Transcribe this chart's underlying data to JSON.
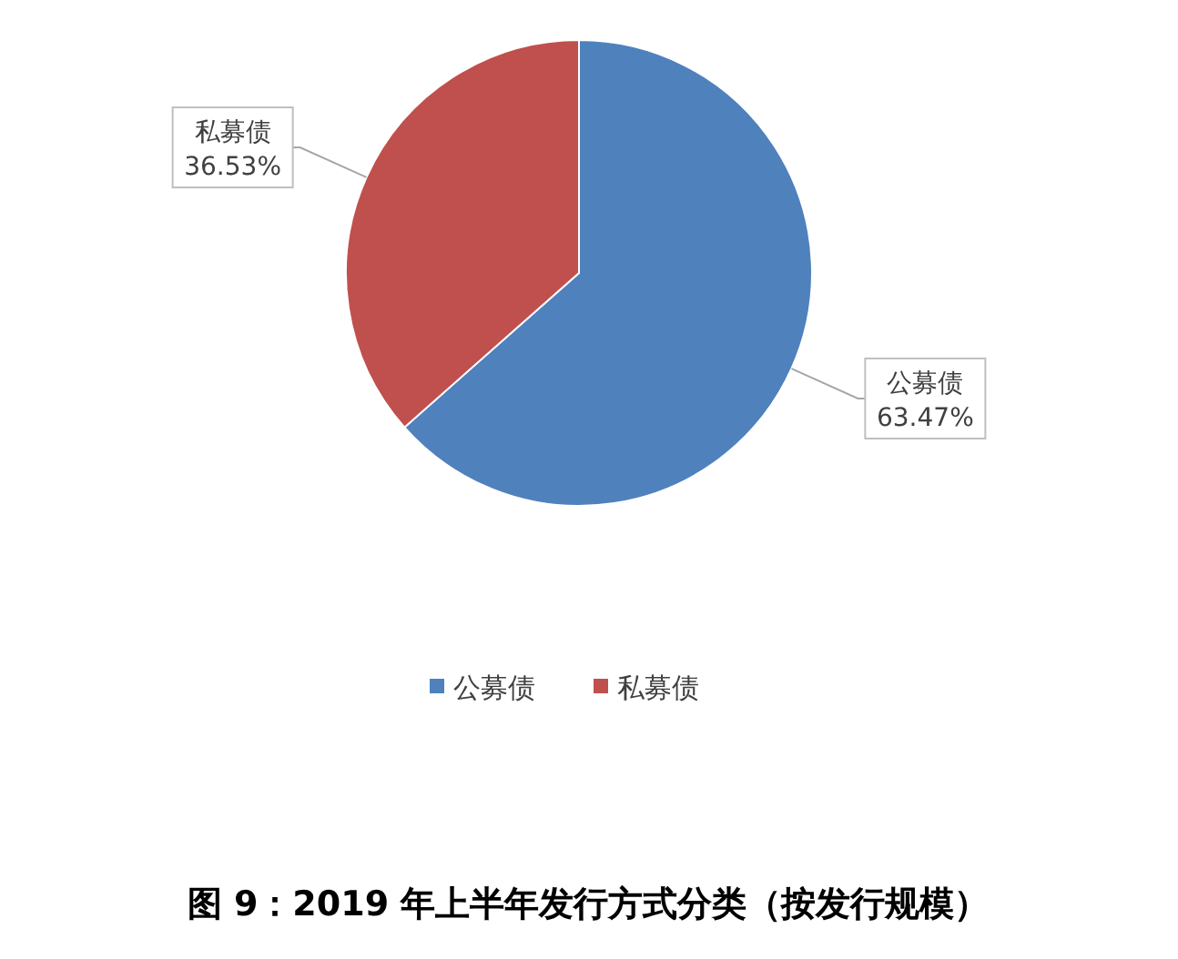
{
  "chart_data": {
    "type": "pie",
    "title": "图 9：2019 年上半年发行方式分类（按发行规模）",
    "categories": [
      "公募债",
      "私募债"
    ],
    "values": [
      63.47,
      36.53
    ],
    "colors": [
      "#4f81bd",
      "#c0504d"
    ],
    "value_labels": [
      "63.47%",
      "36.53%"
    ],
    "legend": "bottom"
  }
}
